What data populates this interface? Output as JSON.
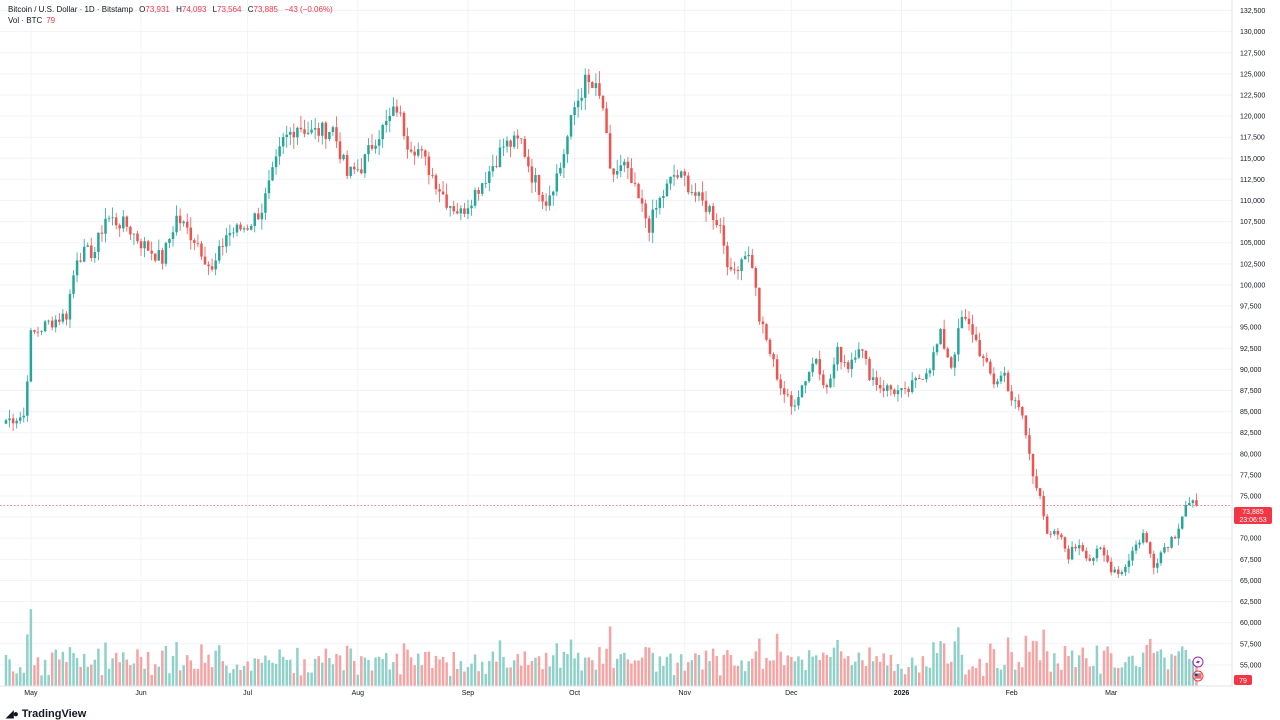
{
  "header": {
    "symbol": "Bitcoin / U.S. Dollar · 1D · Bitstamp",
    "open_label": "O",
    "open": "73,931",
    "high_label": "H",
    "high": "74,093",
    "low_label": "L",
    "low": "73,564",
    "close_label": "C",
    "close": "73,885",
    "change": "−43 (−0.06%)",
    "volume_label": "Vol · BTC",
    "volume_value": "79"
  },
  "price_tag": {
    "price": "73,885",
    "countdown": "23:06:53"
  },
  "volume_tag": "79",
  "logo_text": "TradingView",
  "colors": {
    "up": "#26a69a",
    "down": "#ef5350",
    "vol_up": "#8fd1c9",
    "vol_down": "#f5a3a3",
    "grid": "#f0f3fa",
    "last_price": "#f23645"
  },
  "icons": [
    "lightning-icon",
    "us-flag-icon"
  ],
  "chart_data": {
    "type": "candlestick",
    "title": "Bitcoin / U.S. Dollar · 1D · Bitstamp",
    "ylim": [
      52500,
      133750
    ],
    "y_ticks": [
      55000,
      57500,
      60000,
      62500,
      65000,
      67500,
      70000,
      72500,
      75000,
      77500,
      80000,
      82500,
      85000,
      87500,
      90000,
      92500,
      95000,
      97500,
      100000,
      102500,
      105000,
      107500,
      110000,
      112500,
      115000,
      117500,
      120000,
      122500,
      125000,
      127500,
      130000,
      132500
    ],
    "y_tick_labels": [
      "55,000",
      "57,500",
      "60,000",
      "62,500",
      "65,000",
      "67,500",
      "70,000",
      "72,500",
      "75,000",
      "77,500",
      "80,000",
      "82,500",
      "85,000",
      "87,500",
      "90,000",
      "92,500",
      "95,000",
      "97,500",
      "100,000",
      "102,500",
      "105,000",
      "107,500",
      "110,000",
      "112,500",
      "115,000",
      "117,500",
      "120,000",
      "122,500",
      "125,000",
      "127,500",
      "130,000",
      "132,500"
    ],
    "x_labels": [
      {
        "label": "May",
        "day": 7
      },
      {
        "label": "Jun",
        "day": 38
      },
      {
        "label": "Jul",
        "day": 68
      },
      {
        "label": "Aug",
        "day": 99
      },
      {
        "label": "Sep",
        "day": 130
      },
      {
        "label": "Oct",
        "day": 160
      },
      {
        "label": "Nov",
        "day": 191
      },
      {
        "label": "Dec",
        "day": 221
      },
      {
        "label": "2026",
        "day": 252,
        "bold": true
      },
      {
        "label": "Feb",
        "day": 283
      },
      {
        "label": "Mar",
        "day": 311
      }
    ],
    "last_price": 73885,
    "keypoints": [
      [
        0,
        84000
      ],
      [
        5,
        84500
      ],
      [
        7,
        94000
      ],
      [
        12,
        95500
      ],
      [
        17,
        96500
      ],
      [
        20,
        103500
      ],
      [
        25,
        104000
      ],
      [
        28,
        108000
      ],
      [
        34,
        107000
      ],
      [
        38,
        105000
      ],
      [
        44,
        103000
      ],
      [
        48,
        108000
      ],
      [
        54,
        105000
      ],
      [
        58,
        101500
      ],
      [
        62,
        106000
      ],
      [
        68,
        107000
      ],
      [
        72,
        109000
      ],
      [
        78,
        117000
      ],
      [
        82,
        119000
      ],
      [
        86,
        118000
      ],
      [
        92,
        118500
      ],
      [
        96,
        113000
      ],
      [
        100,
        114000
      ],
      [
        104,
        117500
      ],
      [
        107,
        119000
      ],
      [
        110,
        121000
      ],
      [
        113,
        117000
      ],
      [
        116,
        116000
      ],
      [
        120,
        113000
      ],
      [
        124,
        110000
      ],
      [
        128,
        108500
      ],
      [
        132,
        111000
      ],
      [
        136,
        113500
      ],
      [
        140,
        116500
      ],
      [
        145,
        117000
      ],
      [
        148,
        113000
      ],
      [
        152,
        110000
      ],
      [
        156,
        114000
      ],
      [
        160,
        121000
      ],
      [
        163,
        124000
      ],
      [
        166,
        123000
      ],
      [
        168,
        121000
      ],
      [
        170,
        113000
      ],
      [
        174,
        114000
      ],
      [
        178,
        110000
      ],
      [
        181,
        107000
      ],
      [
        184,
        110000
      ],
      [
        188,
        113000
      ],
      [
        191,
        112500
      ],
      [
        195,
        110000
      ],
      [
        198,
        109000
      ],
      [
        201,
        107000
      ],
      [
        204,
        101000
      ],
      [
        208,
        104000
      ],
      [
        210,
        102500
      ],
      [
        212,
        96000
      ],
      [
        215,
        92000
      ],
      [
        218,
        88000
      ],
      [
        221,
        85500
      ],
      [
        225,
        89000
      ],
      [
        228,
        91500
      ],
      [
        231,
        87500
      ],
      [
        234,
        92000
      ],
      [
        237,
        90500
      ],
      [
        240,
        93000
      ],
      [
        243,
        89500
      ],
      [
        246,
        88000
      ],
      [
        250,
        87500
      ],
      [
        253,
        87000
      ],
      [
        256,
        88500
      ],
      [
        260,
        90500
      ],
      [
        263,
        94000
      ],
      [
        266,
        90500
      ],
      [
        269,
        96000
      ],
      [
        272,
        94500
      ],
      [
        275,
        91000
      ],
      [
        278,
        88500
      ],
      [
        281,
        89500
      ],
      [
        283,
        86500
      ],
      [
        286,
        84500
      ],
      [
        289,
        77500
      ],
      [
        291,
        75500
      ],
      [
        293,
        70000
      ],
      [
        296,
        70500
      ],
      [
        299,
        68000
      ],
      [
        302,
        69500
      ],
      [
        305,
        67500
      ],
      [
        308,
        68500
      ],
      [
        311,
        66500
      ],
      [
        314,
        66000
      ],
      [
        317,
        68500
      ],
      [
        320,
        70500
      ],
      [
        323,
        67000
      ],
      [
        326,
        69000
      ],
      [
        329,
        70500
      ],
      [
        332,
        74000
      ],
      [
        334,
        73885
      ]
    ],
    "volume_ylim": [
      0,
      200
    ],
    "volume_last": 79
  }
}
